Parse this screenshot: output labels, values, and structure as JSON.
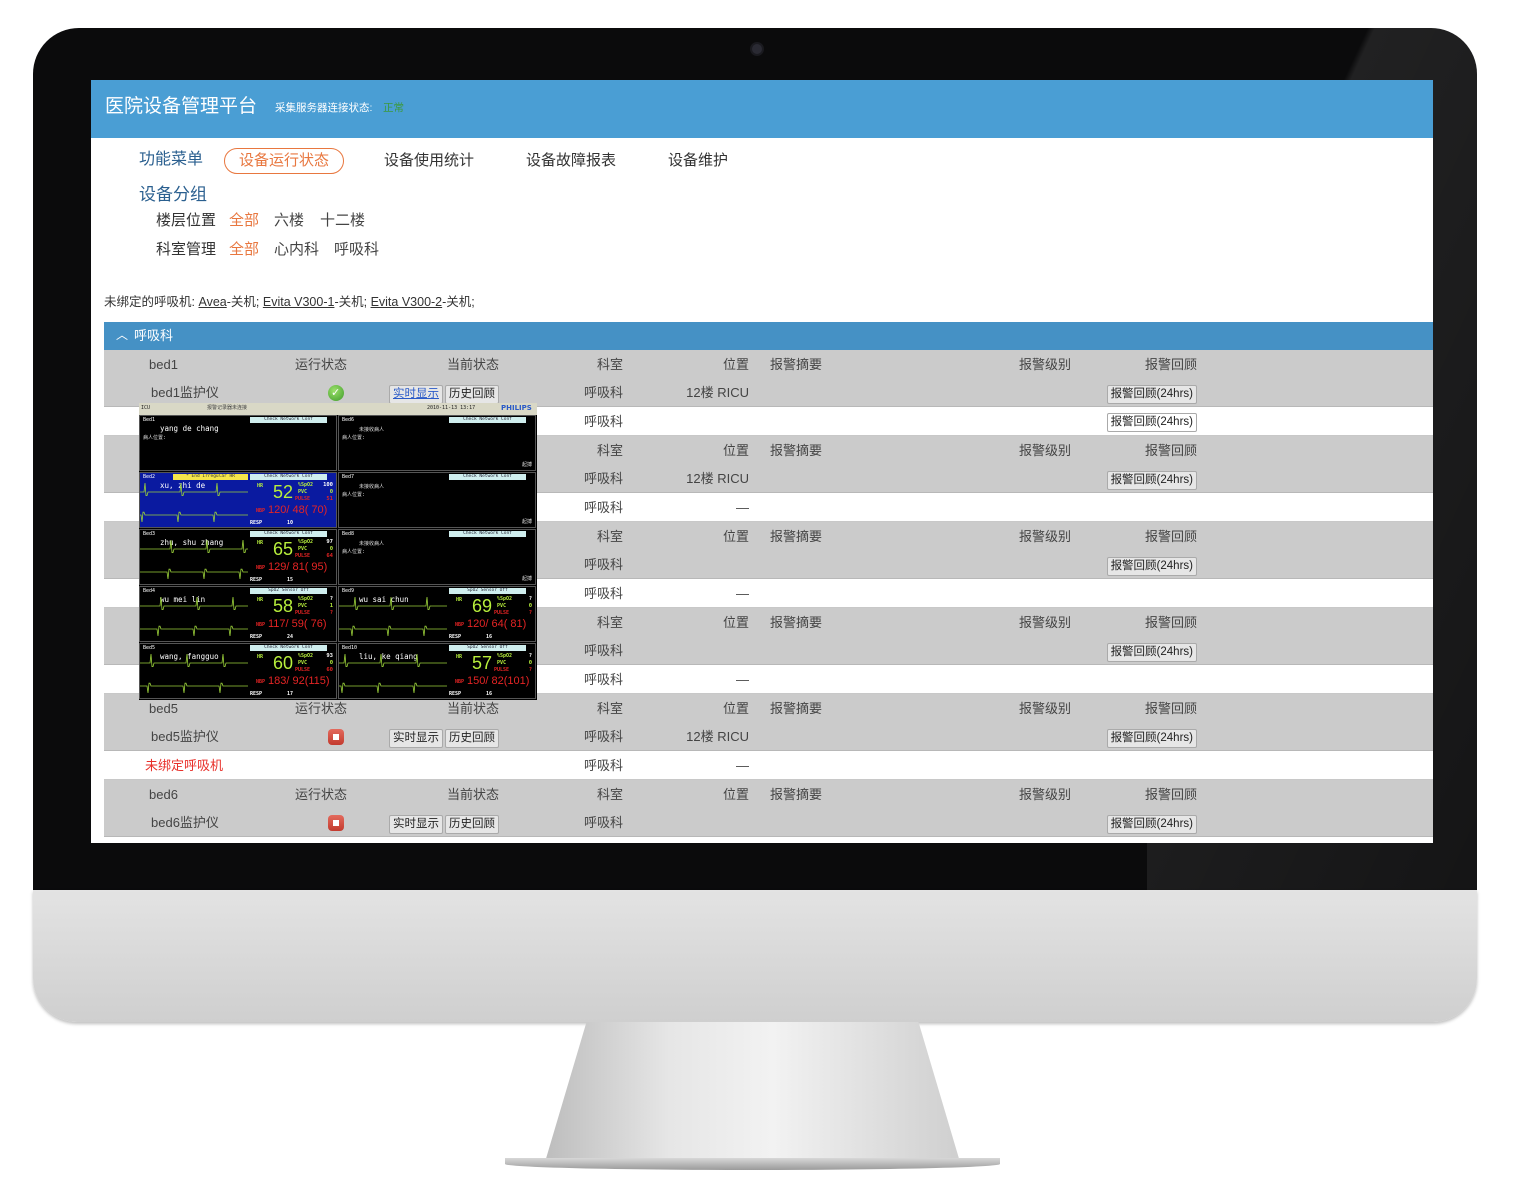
{
  "app": {
    "title": "医院设备管理平台",
    "server_status_label": "采集服务器连接状态:",
    "server_status_value": "正常",
    "status_color": "#3c9a3c",
    "brand_color": "#4a9ed4",
    "accent_color": "#e8773f"
  },
  "nav": {
    "menu_label": "功能菜单",
    "items": [
      {
        "label": "设备运行状态",
        "active": true
      },
      {
        "label": "设备使用统计"
      },
      {
        "label": "设备故障报表"
      },
      {
        "label": "设备维护"
      }
    ]
  },
  "filters": {
    "title": "设备分组",
    "floor": {
      "label": "楼层位置",
      "options": [
        "全部",
        "六楼",
        "十二楼"
      ],
      "selected": "全部"
    },
    "dept": {
      "label": "科室管理",
      "options": [
        "全部",
        "心内科",
        "呼吸科"
      ],
      "selected": "全部"
    }
  },
  "unbound": {
    "prefix": "未绑定的呼吸机:",
    "items": [
      {
        "name": "Avea",
        "state": "-关机;"
      },
      {
        "name": "Evita V300-1",
        "state": "-关机;"
      },
      {
        "name": "Evita V300-2",
        "state": "-关机;"
      }
    ]
  },
  "group": {
    "name": "呼吸科",
    "collapse_icon": "chevron-up-icon"
  },
  "columns": {
    "run": "运行状态",
    "cur": "当前状态",
    "dept": "科室",
    "loc": "位置",
    "summary": "报警摘要",
    "level": "报警级别",
    "review": "报警回顾"
  },
  "buttons": {
    "live": "实时显示",
    "history": "历史回顾",
    "review": "报警回顾(24hrs)"
  },
  "beds": [
    {
      "name": "bed1",
      "device": {
        "name": "bed1监护仪",
        "status": "running",
        "dept": "呼吸科",
        "loc": "12楼 RICU"
      },
      "vent": {
        "name": "",
        "dept": "呼吸科",
        "loc": "",
        "review": true
      }
    },
    {
      "name": "",
      "device": {
        "name": "",
        "status": "",
        "dept": "呼吸科",
        "loc": "12楼 RICU"
      },
      "vent": {
        "name": "",
        "dept": "呼吸科",
        "loc": "—",
        "review": false
      }
    },
    {
      "name": "",
      "device": {
        "name": "",
        "status": "",
        "dept": "呼吸科",
        "loc": ""
      },
      "vent": {
        "name": "",
        "dept": "呼吸科",
        "loc": "—",
        "review": false
      }
    },
    {
      "name": "",
      "device": {
        "name": "",
        "status": "",
        "dept": "呼吸科",
        "loc": ""
      },
      "vent": {
        "name": "",
        "dept": "呼吸科",
        "loc": "—",
        "review": false
      }
    },
    {
      "name": "bed5",
      "device": {
        "name": "bed5监护仪",
        "status": "stopped",
        "dept": "呼吸科",
        "loc": "12楼 RICU"
      },
      "vent": {
        "name": "未绑定呼吸机",
        "dept": "呼吸科",
        "loc": "—",
        "review": false
      }
    },
    {
      "name": "bed6",
      "device": {
        "name": "bed6监护仪",
        "status": "stopped",
        "dept": "呼吸科",
        "loc": ""
      }
    }
  ],
  "monitor": {
    "unit": "ICU",
    "recorder": "报警记录器未连接",
    "datetime": "2010-11-13  13:17",
    "brand": "PHILIPS",
    "labels": {
      "hr": "HR",
      "spo2": "%SpO2",
      "pvc": "PVC",
      "pulse": "PULSE",
      "nbp": "NBP",
      "resp": "RESP",
      "no_patient": "未接收病人",
      "location": "病人位置:",
      "pace": "起搏"
    },
    "beds": [
      {
        "bed": "Bed1",
        "patient": "yang de chang",
        "msg": "Check Network Conf"
      },
      {
        "bed": "Bed6",
        "patient": "",
        "msg": "Check Network Conf"
      },
      {
        "bed": "Bed2",
        "patient": "xu, zhi de",
        "msg": "Check Network Conf",
        "alarm": "* End Irregular HR",
        "hr": "52",
        "spo2": "100",
        "pvc": "0",
        "pulse": "51",
        "nbp": "120/ 48( 70)",
        "resp": "10",
        "highlight": true
      },
      {
        "bed": "Bed7",
        "patient": "",
        "msg": "Check Network Conf"
      },
      {
        "bed": "Bed3",
        "patient": "zhu, shu zhang",
        "msg": "Check Network Conf",
        "hr": "65",
        "spo2": "97",
        "pvc": "0",
        "pulse": "64",
        "nbp": "129/ 81( 95)",
        "resp": "15"
      },
      {
        "bed": "Bed8",
        "patient": "",
        "msg": "Check Network Conf"
      },
      {
        "bed": "Bed4",
        "patient": "wu mei lin",
        "msg": "SpO2  Sensor Off",
        "hr": "58",
        "spo2": "?",
        "pvc": "1",
        "pulse": "?",
        "nbp": "117/ 59( 76)",
        "resp": "24"
      },
      {
        "bed": "Bed9",
        "patient": "wu sai chun",
        "msg": "SpO2  Sensor Off",
        "hr": "69",
        "spo2": "?",
        "pvc": "0",
        "pulse": "?",
        "nbp": "120/ 64( 81)",
        "resp": "16"
      },
      {
        "bed": "Bed5",
        "patient": "wang, fangguo",
        "msg": "Check Network Conf",
        "hr": "60",
        "spo2": "93",
        "pvc": "0",
        "pulse": "60",
        "nbp": "183/ 92(115)",
        "resp": "17"
      },
      {
        "bed": "Bed10",
        "patient": "liu, ke qiang",
        "msg": "SpO2  Sensor Off",
        "hr": "57",
        "spo2": "?",
        "pvc": "0",
        "pulse": "?",
        "nbp": "150/ 82(101)",
        "resp": "16"
      }
    ]
  }
}
